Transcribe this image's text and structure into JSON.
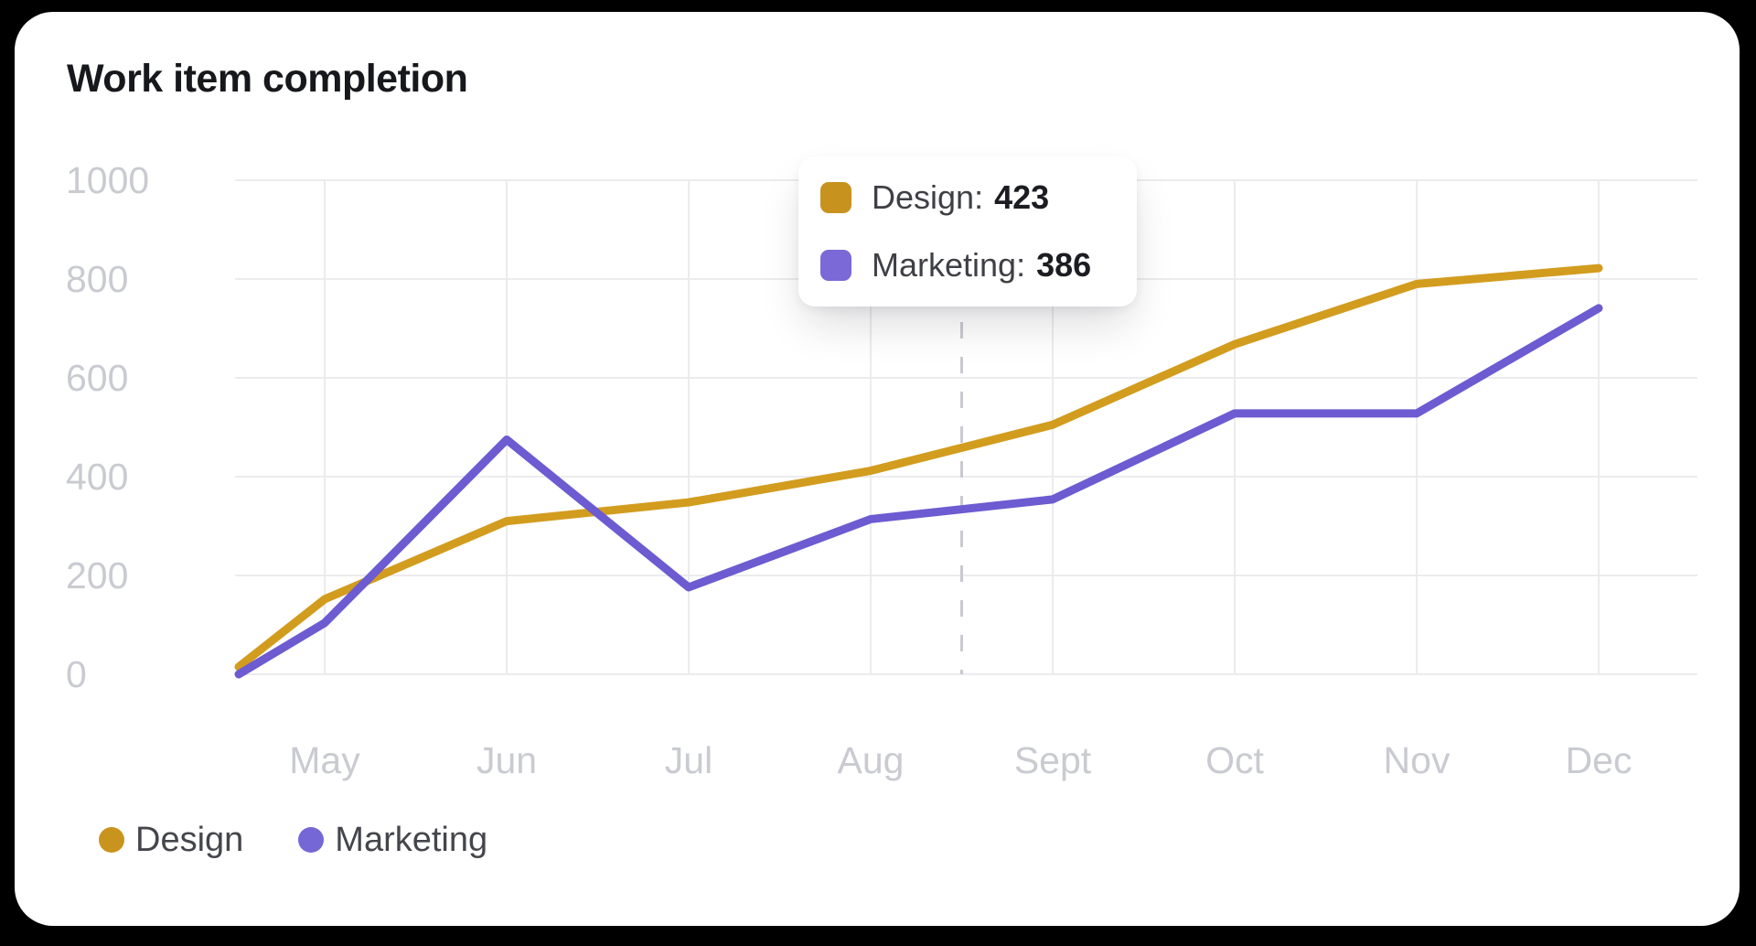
{
  "window": {
    "background_color": "#000000",
    "card_background_color": "#ffffff"
  },
  "header": {
    "title": "Work item completion"
  },
  "chart_data": {
    "type": "line",
    "title": "Work item completion",
    "categories": [
      "",
      "May",
      "Jun",
      "Jul",
      "Aug",
      "Sept",
      "Oct",
      "Nov",
      "Dec"
    ],
    "series": [
      {
        "name": "Design",
        "color": "#D29C1E",
        "values": [
          15,
          152,
          310,
          348,
          412,
          505,
          668,
          790,
          822
        ]
      },
      {
        "name": "Marketing",
        "color": "#6C5BD1",
        "values": [
          0,
          104,
          475,
          176,
          314,
          354,
          528,
          528,
          741
        ]
      }
    ],
    "ylim": [
      0,
      1000
    ],
    "yticks": [
      0,
      200,
      400,
      600,
      800,
      1000
    ],
    "grid": true,
    "gridline_color": "#ececef",
    "axis_label_color": "#c9cbd1",
    "legend_position": "bottom-left"
  },
  "tooltip": {
    "hover_between": [
      "Aug",
      "Sept"
    ],
    "separator": ":",
    "rows": [
      {
        "label": "Design",
        "value": "423",
        "color": "#C8921E"
      },
      {
        "label": "Marketing",
        "value": "386",
        "color": "#7A69D6"
      }
    ]
  },
  "legend": {
    "items": [
      {
        "label": "Design",
        "color": "#C9941E"
      },
      {
        "label": "Marketing",
        "color": "#7667D6"
      }
    ]
  }
}
